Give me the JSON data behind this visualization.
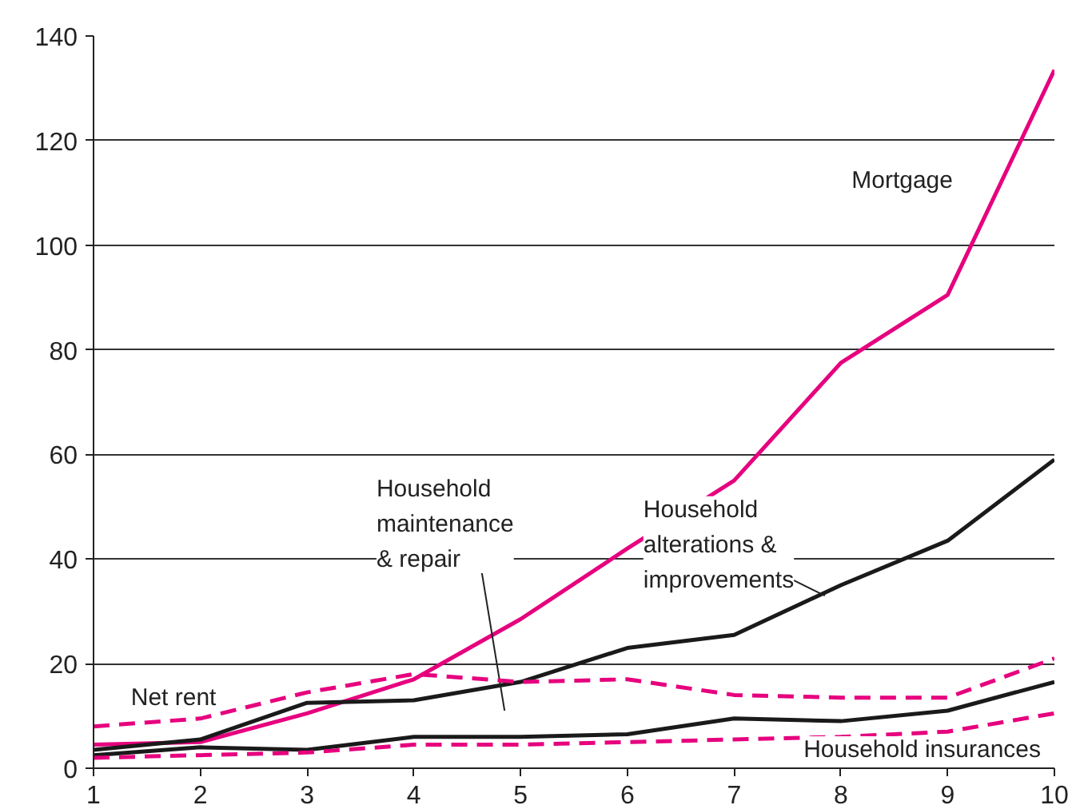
{
  "chart_data": {
    "type": "line",
    "x": [
      1,
      2,
      3,
      4,
      5,
      6,
      7,
      8,
      9,
      10
    ],
    "series": [
      {
        "name": "Mortgage",
        "color": "#e6007e",
        "line_style": "solid",
        "values": [
          4.5,
          5,
          10.5,
          17,
          28.5,
          42,
          55,
          77.5,
          90.5,
          133.5
        ]
      },
      {
        "name": "Household alterations & improvements",
        "color": "#1a1a1a",
        "line_style": "solid",
        "values": [
          3.5,
          5.5,
          12.5,
          13,
          16.5,
          23,
          25.5,
          35,
          43.5,
          59
        ]
      },
      {
        "name": "Household maintenance & repair",
        "color": "#1a1a1a",
        "line_style": "solid",
        "values": [
          2.5,
          4,
          3.5,
          6,
          6,
          6.5,
          9.5,
          9,
          11,
          16.5
        ]
      },
      {
        "name": "Net rent",
        "color": "#e6007e",
        "line_style": "dashed",
        "values": [
          8,
          9.5,
          14.5,
          18,
          16.5,
          17,
          14,
          13.5,
          13.5,
          21
        ]
      },
      {
        "name": "Household insurances",
        "color": "#e6007e",
        "line_style": "dashed",
        "values": [
          2,
          2.5,
          3,
          4.5,
          4.5,
          5,
          5.5,
          6,
          7,
          10.5
        ]
      }
    ],
    "xlim": [
      1,
      10
    ],
    "xticks": [
      1,
      2,
      3,
      4,
      5,
      6,
      7,
      8,
      9,
      10
    ],
    "ylim": [
      0,
      140
    ],
    "yticks": [
      0,
      20,
      40,
      60,
      80,
      100,
      120,
      140
    ],
    "grid": "y",
    "marker": "none"
  }
}
